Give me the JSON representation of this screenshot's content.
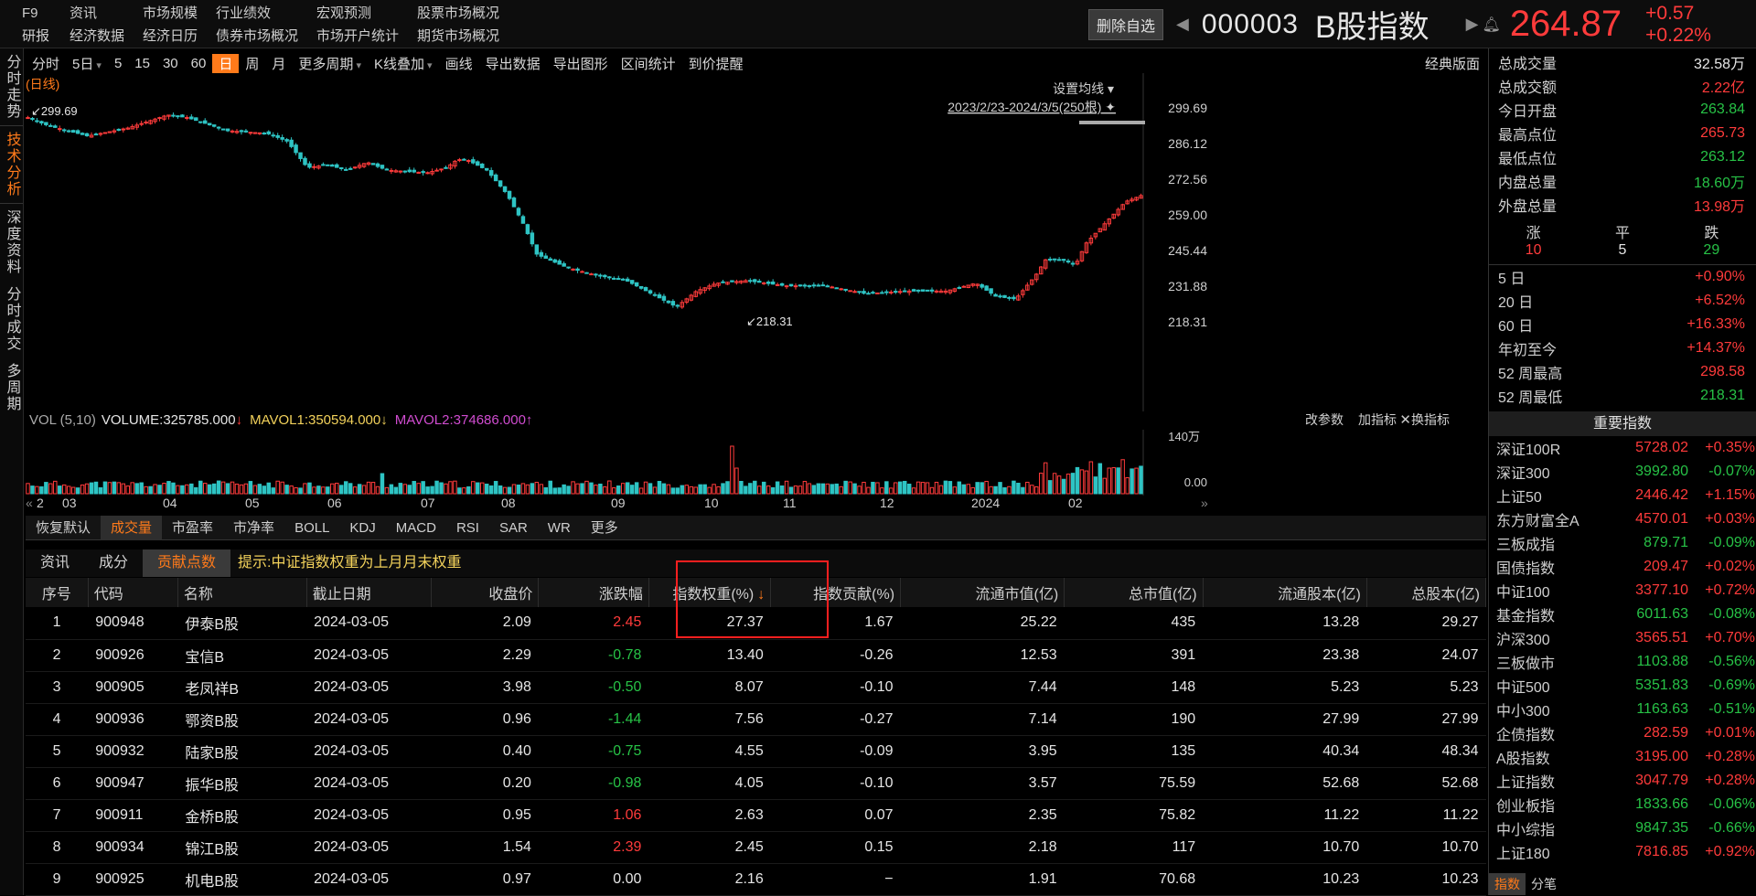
{
  "topnav": {
    "row1": [
      "F9",
      "资讯",
      "市场规模",
      "行业绩效",
      "宏观预测",
      "股票市场概况"
    ],
    "row2": [
      "研报",
      "经济数据",
      "经济日历",
      "债券市场概况",
      "市场开户统计",
      "期货市场概况"
    ]
  },
  "header": {
    "delete_btn": "删除自选",
    "code": "000003",
    "name": "B股指数",
    "price": "264.87",
    "change": "+0.57",
    "change_pct": "+0.22%"
  },
  "sidebar": [
    {
      "label": "分时走势",
      "active": false
    },
    {
      "label": "技术分析",
      "active": true
    },
    {
      "label": "深度资料",
      "active": false
    },
    {
      "label": "分时成交",
      "active": false
    },
    {
      "label": "多周期",
      "active": false
    }
  ],
  "chart_toolbar": {
    "items": [
      "分时",
      "5日",
      "5",
      "15",
      "30",
      "60",
      "日",
      "周",
      "月",
      "更多周期",
      "K线叠加",
      "画线",
      "导出数据",
      "导出图形",
      "区间统计",
      "到价提醒"
    ],
    "active": "日",
    "classic": "经典版面"
  },
  "chart": {
    "period_label": "(日线)",
    "ma_setting": "设置均线",
    "range": "2023/2/23-2024/3/5(250根)",
    "y_ticks": [
      "299.69",
      "286.12",
      "272.56",
      "259.00",
      "245.44",
      "231.88",
      "218.31"
    ],
    "high_label": "299.69",
    "low_label": "218.31"
  },
  "volume": {
    "label": "VOL (5,10)",
    "volume": "VOLUME:325785.000",
    "mavol1": "MAVOL1:350594.000",
    "mavol2": "MAVOL2:374686.000",
    "actions": [
      "改参数",
      "加指标",
      "换指标"
    ],
    "y_ticks": [
      "140万",
      "0.00"
    ]
  },
  "date_axis": [
    "2",
    "03",
    "04",
    "05",
    "06",
    "07",
    "08",
    "09",
    "10",
    "11",
    "12",
    "2024",
    "02"
  ],
  "indicator_tabs": {
    "items": [
      "恢复默认",
      "成交量",
      "市盈率",
      "市净率",
      "BOLL",
      "KDJ",
      "MACD",
      "RSI",
      "SAR",
      "WR",
      "更多"
    ],
    "active": "成交量"
  },
  "table_tabs": {
    "items": [
      "资讯",
      "成分",
      "贡献点数"
    ],
    "active": "贡献点数",
    "tip": "提示:中证指数权重为上月月末权重"
  },
  "table": {
    "headers": [
      "序号",
      "代码",
      "名称",
      "截止日期",
      "收盘价",
      "涨跌幅",
      "指数权重(%)",
      "指数贡献(%)",
      "流通市值(亿)",
      "总市值(亿)",
      "流通股本(亿)",
      "总股本(亿)"
    ],
    "sort_indicator": "↓",
    "rows": [
      [
        "1",
        "900948",
        "伊泰B股",
        "2024-03-05",
        "2.09",
        "2.45",
        "27.37",
        "1.67",
        "25.22",
        "435",
        "13.28",
        "29.27"
      ],
      [
        "2",
        "900926",
        "宝信B",
        "2024-03-05",
        "2.29",
        "-0.78",
        "13.40",
        "-0.26",
        "12.53",
        "391",
        "23.38",
        "24.07"
      ],
      [
        "3",
        "900905",
        "老凤祥B",
        "2024-03-05",
        "3.98",
        "-0.50",
        "8.07",
        "-0.10",
        "7.44",
        "148",
        "5.23",
        "5.23"
      ],
      [
        "4",
        "900936",
        "鄂资B股",
        "2024-03-05",
        "0.96",
        "-1.44",
        "7.56",
        "-0.27",
        "7.14",
        "190",
        "27.99",
        "27.99"
      ],
      [
        "5",
        "900932",
        "陆家B股",
        "2024-03-05",
        "0.40",
        "-0.75",
        "4.55",
        "-0.09",
        "3.95",
        "135",
        "40.34",
        "48.34"
      ],
      [
        "6",
        "900947",
        "振华B股",
        "2024-03-05",
        "0.20",
        "-0.98",
        "4.05",
        "-0.10",
        "3.57",
        "75.59",
        "52.68",
        "52.68"
      ],
      [
        "7",
        "900911",
        "金桥B股",
        "2024-03-05",
        "0.95",
        "1.06",
        "2.63",
        "0.07",
        "2.35",
        "75.82",
        "11.22",
        "11.22"
      ],
      [
        "8",
        "900934",
        "锦江B股",
        "2024-03-05",
        "1.54",
        "2.39",
        "2.45",
        "0.15",
        "2.18",
        "117",
        "10.70",
        "10.70"
      ],
      [
        "9",
        "900925",
        "机电B股",
        "2024-03-05",
        "0.97",
        "0.00",
        "2.16",
        "−",
        "1.91",
        "70.68",
        "10.23",
        "10.23"
      ]
    ]
  },
  "right_panel": {
    "stats": [
      [
        "总成交量",
        "32.58万",
        "wh"
      ],
      [
        "总成交额",
        "2.22亿",
        "up"
      ],
      [
        "今日开盘",
        "263.84",
        "dn"
      ],
      [
        "最高点位",
        "265.73",
        "up"
      ],
      [
        "最低点位",
        "263.12",
        "dn"
      ],
      [
        "内盘总量",
        "18.60万",
        "dn"
      ],
      [
        "外盘总量",
        "13.98万",
        "up"
      ]
    ],
    "counts": {
      "labels": [
        "涨",
        "平",
        "跌"
      ],
      "values": [
        "10",
        "5",
        "29"
      ]
    },
    "periods": [
      [
        "5 日",
        "+0.90%"
      ],
      [
        "20 日",
        "+6.52%"
      ],
      [
        "60 日",
        "+16.33%"
      ],
      [
        "年初至今",
        "+14.37%"
      ],
      [
        "52 周最高",
        "298.58"
      ],
      [
        "52 周最低",
        "218.31"
      ]
    ],
    "important_title": "重要指数",
    "indices": [
      [
        "深证100R",
        "5728.02",
        "+0.35%"
      ],
      [
        "深证300",
        "3992.80",
        "-0.07%"
      ],
      [
        "上证50",
        "2446.42",
        "+1.15%"
      ],
      [
        "东方财富全A",
        "4570.01",
        "+0.03%"
      ],
      [
        "三板成指",
        "879.71",
        "-0.09%"
      ],
      [
        "国债指数",
        "209.47",
        "+0.02%"
      ],
      [
        "中证100",
        "3377.10",
        "+0.72%"
      ],
      [
        "基金指数",
        "6011.63",
        "-0.08%"
      ],
      [
        "沪深300",
        "3565.51",
        "+0.70%"
      ],
      [
        "三板做市",
        "1103.88",
        "-0.56%"
      ],
      [
        "中证500",
        "5351.83",
        "-0.69%"
      ],
      [
        "中小300",
        "1163.63",
        "-0.51%"
      ],
      [
        "企债指数",
        "282.59",
        "+0.01%"
      ],
      [
        "A股指数",
        "3195.00",
        "+0.28%"
      ],
      [
        "上证指数",
        "3047.79",
        "+0.28%"
      ],
      [
        "创业板指",
        "1833.66",
        "-0.06%"
      ],
      [
        "中小综指",
        "9847.35",
        "-0.66%"
      ],
      [
        "上证180",
        "7816.85",
        "+0.92%"
      ]
    ],
    "bottom_tabs": [
      "指数",
      "分笔"
    ]
  },
  "colors": {
    "up": "#ff3b3b",
    "down": "#27c246",
    "accent": "#ff7a1a",
    "bg": "#000000",
    "ma5": "#e6e6e6",
    "ma10": "#f3d25b",
    "ma20": "#d04cd0"
  }
}
